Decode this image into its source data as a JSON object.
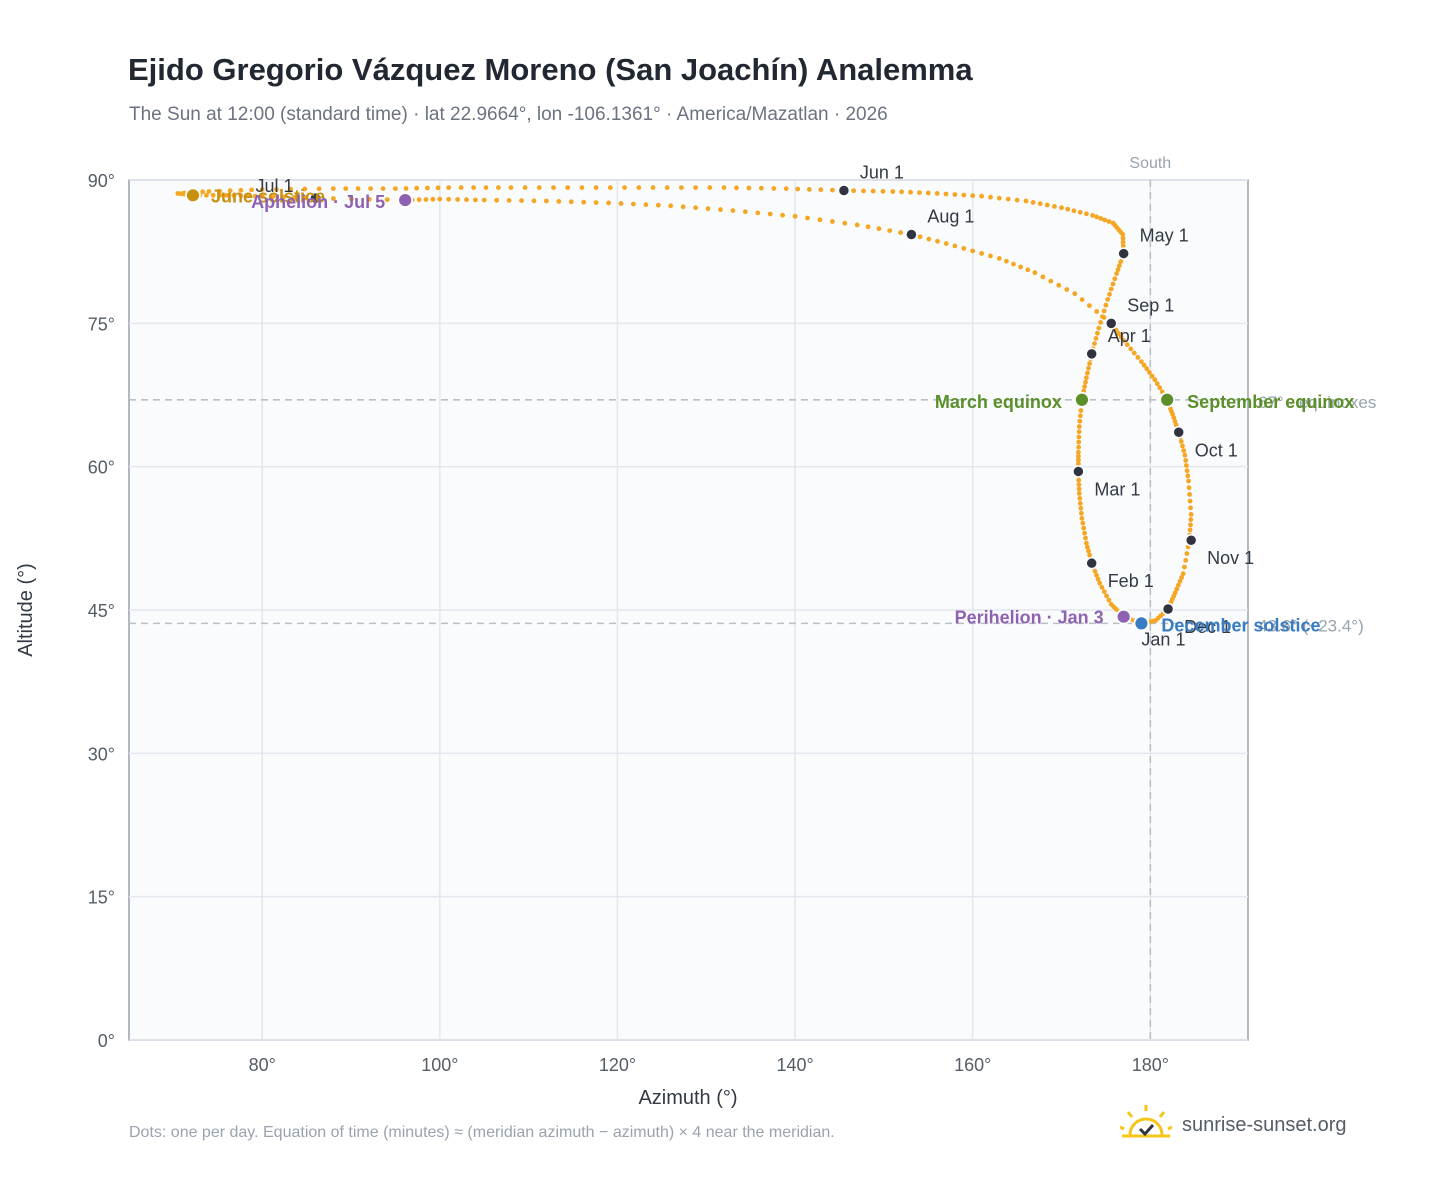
{
  "header": {
    "title": "Ejido Gregorio Vázquez Moreno (San Joachín) Analemma",
    "subtitle": "The Sun at 12:00 (standard time) · lat 22.9664°, lon -106.1361° · America/Mazatlan · 2026"
  },
  "footer": {
    "note": "Dots: one per day. Equation of time (minutes) ≈ (meridian azimuth − azimuth) × 4 near the meridian.",
    "brand": "sunrise-sunset.org"
  },
  "colors": {
    "path": "#f5a623",
    "month_marker": "#2f3440",
    "equinox": "#5a8f29",
    "june_solstice": "#c8900f",
    "december_solstice": "#3a7cc1",
    "apsis": "#8e62b0",
    "reference_line": "#b8c0c8",
    "plot_bg": "#f9fbfd",
    "grid": "#e3e8ee"
  },
  "chart_data": {
    "type": "scatter",
    "xlabel": "Azimuth (°)",
    "ylabel": "Altitude (°)",
    "xlim": [
      65,
      191
    ],
    "ylim": [
      0,
      90
    ],
    "x_ticks": [
      80,
      100,
      120,
      140,
      160,
      180
    ],
    "x_tick_labels": [
      "80°",
      "100°",
      "120°",
      "140°",
      "160°",
      "180°"
    ],
    "y_ticks": [
      0,
      15,
      30,
      45,
      60,
      75,
      90
    ],
    "y_tick_labels": [
      "0°",
      "15°",
      "30°",
      "45°",
      "60°",
      "75°",
      "90°"
    ],
    "grid": true,
    "reference_lines": [
      {
        "axis": "x",
        "value": 180,
        "label": "South"
      },
      {
        "axis": "y",
        "value": 67.0,
        "label": "67° · equinoxes"
      },
      {
        "axis": "y",
        "value": 43.6,
        "label": "43.6° (−23.4°)"
      }
    ],
    "daily_path": [
      [
        179.0,
        43.6
      ],
      [
        180.6,
        43.9
      ],
      [
        182.0,
        45.1
      ],
      [
        182.8,
        46.8
      ],
      [
        183.7,
        48.8
      ],
      [
        184.4,
        52.3
      ],
      [
        184.6,
        55.0
      ],
      [
        184.3,
        58.5
      ],
      [
        183.9,
        61.2
      ],
      [
        183.2,
        63.6
      ],
      [
        182.5,
        65.5
      ],
      [
        181.9,
        67.0
      ],
      [
        180.5,
        69.1
      ],
      [
        179.0,
        71.0
      ],
      [
        177.0,
        73.2
      ],
      [
        175.6,
        75.0
      ],
      [
        171.5,
        78.1
      ],
      [
        167.0,
        80.3
      ],
      [
        163.0,
        81.8
      ],
      [
        158.0,
        83.1
      ],
      [
        153.1,
        84.3
      ],
      [
        147.0,
        85.3
      ],
      [
        140.0,
        86.2
      ],
      [
        133.0,
        86.8
      ],
      [
        126.0,
        87.3
      ],
      [
        119.0,
        87.6
      ],
      [
        112.0,
        87.8
      ],
      [
        105.0,
        87.9
      ],
      [
        100.0,
        88.0
      ],
      [
        96.1,
        87.9
      ],
      [
        86.0,
        88.1
      ],
      [
        80.0,
        88.3
      ],
      [
        76.0,
        88.4
      ],
      [
        72.2,
        88.4
      ],
      [
        70.5,
        88.6
      ],
      [
        74.0,
        88.8
      ],
      [
        80.0,
        89.0
      ],
      [
        88.0,
        89.1
      ],
      [
        95.0,
        89.1
      ],
      [
        101.0,
        89.2
      ],
      [
        108.0,
        89.2
      ],
      [
        116.0,
        89.2
      ],
      [
        124.0,
        89.2
      ],
      [
        132.0,
        89.2
      ],
      [
        139.0,
        89.1
      ],
      [
        145.5,
        88.9
      ],
      [
        151.0,
        88.8
      ],
      [
        156.0,
        88.6
      ],
      [
        161.0,
        88.3
      ],
      [
        166.0,
        87.8
      ],
      [
        170.0,
        87.1
      ],
      [
        173.5,
        86.3
      ],
      [
        175.8,
        85.5
      ],
      [
        176.9,
        84.3
      ],
      [
        177.0,
        82.3
      ],
      [
        176.2,
        80.2
      ],
      [
        175.2,
        77.5
      ],
      [
        174.2,
        74.5
      ],
      [
        173.4,
        71.8
      ],
      [
        172.8,
        69.3
      ],
      [
        172.3,
        67.0
      ],
      [
        172.0,
        64.2
      ],
      [
        171.9,
        61.5
      ],
      [
        171.9,
        59.5
      ],
      [
        172.0,
        57.2
      ],
      [
        172.3,
        54.6
      ],
      [
        172.8,
        52.0
      ],
      [
        173.4,
        49.9
      ],
      [
        174.3,
        47.8
      ],
      [
        175.6,
        45.6
      ],
      [
        177.0,
        44.3
      ],
      [
        179.0,
        43.6
      ]
    ],
    "month_markers": [
      {
        "label": "Jan 1",
        "x": 179.0,
        "y": 43.6
      },
      {
        "label": "Feb 1",
        "x": 173.4,
        "y": 49.9
      },
      {
        "label": "Mar 1",
        "x": 171.9,
        "y": 59.5
      },
      {
        "label": "Apr 1",
        "x": 173.4,
        "y": 71.8
      },
      {
        "label": "May 1",
        "x": 177.0,
        "y": 82.3
      },
      {
        "label": "Jun 1",
        "x": 145.5,
        "y": 88.9
      },
      {
        "label": "Jul 1",
        "x": 86.0,
        "y": 88.1
      },
      {
        "label": "Aug 1",
        "x": 153.1,
        "y": 84.3
      },
      {
        "label": "Sep 1",
        "x": 175.6,
        "y": 75.0
      },
      {
        "label": "Oct 1",
        "x": 183.2,
        "y": 63.6
      },
      {
        "label": "Nov 1",
        "x": 184.6,
        "y": 52.3
      },
      {
        "label": "Dec 1",
        "x": 182.0,
        "y": 45.1
      }
    ],
    "events": [
      {
        "label": "March equinox",
        "x": 172.3,
        "y": 67.0,
        "kind": "equinox"
      },
      {
        "label": "September equinox",
        "x": 181.9,
        "y": 67.0,
        "kind": "equinox"
      },
      {
        "label": "June solstice",
        "x": 72.2,
        "y": 88.4,
        "kind": "june_solstice"
      },
      {
        "label": "December solstice",
        "x": 179.0,
        "y": 43.6,
        "kind": "december_solstice"
      },
      {
        "label": "Perihelion · Jan 3",
        "x": 177.0,
        "y": 44.3,
        "kind": "apsis"
      },
      {
        "label": "Aphelion · Jul 5",
        "x": 96.1,
        "y": 87.9,
        "kind": "apsis"
      }
    ]
  }
}
